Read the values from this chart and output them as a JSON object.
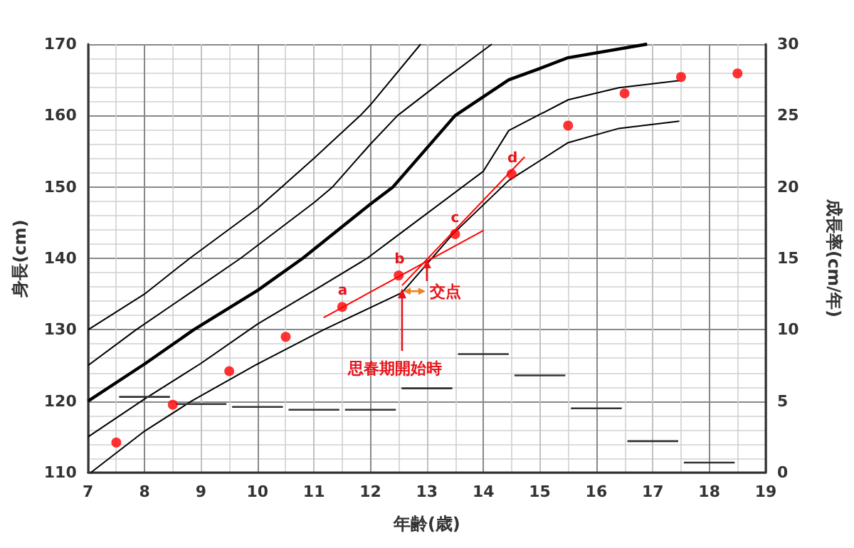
{
  "chart_data": {
    "type": "line",
    "xlabel": "年齢(歳)",
    "ylabel": "身長(cm)",
    "y2label": "成長率(cm/年)",
    "xlim": [
      7,
      19
    ],
    "xticks": [
      7,
      8,
      9,
      10,
      11,
      12,
      13,
      14,
      15,
      16,
      17,
      18,
      19
    ],
    "ylim": [
      110,
      170
    ],
    "yticks": [
      110,
      120,
      130,
      140,
      150,
      160,
      170
    ],
    "y2lim": [
      0,
      30
    ],
    "y2ticks": [
      0,
      5,
      10,
      15,
      20,
      25,
      30
    ],
    "grid": true,
    "series": [
      {
        "color": "#000000",
        "x": [
          7,
          8,
          8.8,
          10,
          10.43,
          11,
          11.82,
          12,
          12.89
        ],
        "values": [
          130,
          135,
          140,
          147,
          150,
          154,
          160,
          161.5,
          170
        ]
      },
      {
        "color": "#000000",
        "x": [
          7,
          7.85,
          9,
          9.7,
          11,
          11.33,
          12,
          12.48,
          13.3,
          14.15
        ],
        "values": [
          125,
          130,
          136.2,
          140,
          147.8,
          150,
          156,
          160,
          165,
          170
        ]
      },
      {
        "color": "#000000",
        "x": [
          7,
          8,
          8.87,
          10,
          10.8,
          12,
          12.4,
          13.5,
          14.45,
          14.97,
          15.5,
          16.9
        ],
        "values": [
          120,
          125.2,
          130,
          135.5,
          140,
          147.6,
          150,
          160,
          165,
          166.5,
          168.1,
          170
        ]
      },
      {
        "color": "#000000",
        "x": [
          7,
          8,
          9,
          10,
          11,
          11.94,
          12.48,
          14,
          14.45,
          15.5,
          16.4,
          17.47
        ],
        "values": [
          115,
          120.3,
          125.3,
          130.8,
          135.5,
          140,
          143.2,
          152.2,
          157.9,
          162.2,
          163.9,
          164.9
        ]
      },
      {
        "color": "#000000",
        "x": [
          7.05,
          8,
          8.83,
          10,
          11.17,
          12.56,
          13.46,
          14.45,
          15.5,
          16.4,
          17.47
        ],
        "values": [
          110,
          115.8,
          120,
          125.2,
          130,
          135.2,
          143.4,
          150.9,
          156.2,
          158.2,
          159.2
        ]
      },
      {
        "type": "scatter",
        "marker": "circle",
        "color": "#ff0000",
        "x": [
          7.5,
          8.5,
          9.5,
          10.5,
          11.5,
          12.5,
          13.5,
          14.5,
          15.5,
          16.5,
          17.5,
          18.5
        ],
        "values": [
          114.2,
          119.5,
          124.2,
          129,
          133.2,
          137.6,
          143.4,
          151.8,
          158.6,
          163.1,
          165.4,
          165.9
        ]
      },
      {
        "color": "#ff0000",
        "x": [
          11.17,
          14
        ],
        "values": [
          131.7,
          143.9
        ]
      },
      {
        "color": "#ff0000",
        "x": [
          12.56,
          14.73
        ],
        "values": [
          136.2,
          154.2
        ]
      },
      {
        "axis": "y2",
        "color": "#333333",
        "x": [
          7.55,
          8.45
        ],
        "values": [
          5.3,
          5.3
        ]
      },
      {
        "axis": "y2",
        "color": "#333333",
        "x": [
          8.55,
          9.45
        ],
        "values": [
          4.8,
          4.8
        ]
      },
      {
        "axis": "y2",
        "color": "#333333",
        "x": [
          9.55,
          10.45
        ],
        "values": [
          4.6,
          4.6
        ]
      },
      {
        "axis": "y2",
        "color": "#333333",
        "x": [
          10.55,
          11.45
        ],
        "values": [
          4.4,
          4.4
        ]
      },
      {
        "axis": "y2",
        "color": "#333333",
        "x": [
          11.55,
          12.45
        ],
        "values": [
          4.4,
          4.4
        ]
      },
      {
        "axis": "y2",
        "color": "#333333",
        "x": [
          12.55,
          13.45
        ],
        "values": [
          5.9,
          5.9
        ]
      },
      {
        "axis": "y2",
        "color": "#333333",
        "x": [
          13.55,
          14.45
        ],
        "values": [
          8.3,
          8.3
        ]
      },
      {
        "axis": "y2",
        "color": "#333333",
        "x": [
          14.55,
          15.45
        ],
        "values": [
          6.8,
          6.8
        ]
      },
      {
        "axis": "y2",
        "color": "#333333",
        "x": [
          15.55,
          16.45
        ],
        "values": [
          4.5,
          4.5
        ]
      },
      {
        "axis": "y2",
        "color": "#333333",
        "x": [
          16.55,
          17.45
        ],
        "values": [
          2.2,
          2.2
        ]
      },
      {
        "axis": "y2",
        "color": "#333333",
        "x": [
          17.55,
          18.45
        ],
        "values": [
          0.7,
          0.7
        ]
      }
    ],
    "annotations": [
      {
        "text": "a",
        "x": 11.5,
        "y": 133.2
      },
      {
        "text": "b",
        "x": 12.5,
        "y": 137.6
      },
      {
        "text": "c",
        "x": 13.5,
        "y": 143.4
      },
      {
        "text": "d",
        "x": 14.5,
        "y": 151.8
      },
      {
        "text": "交点",
        "x": 13,
        "y": 140
      },
      {
        "text": "思春期開始時",
        "x": 12.56,
        "y": 136.2
      }
    ]
  }
}
